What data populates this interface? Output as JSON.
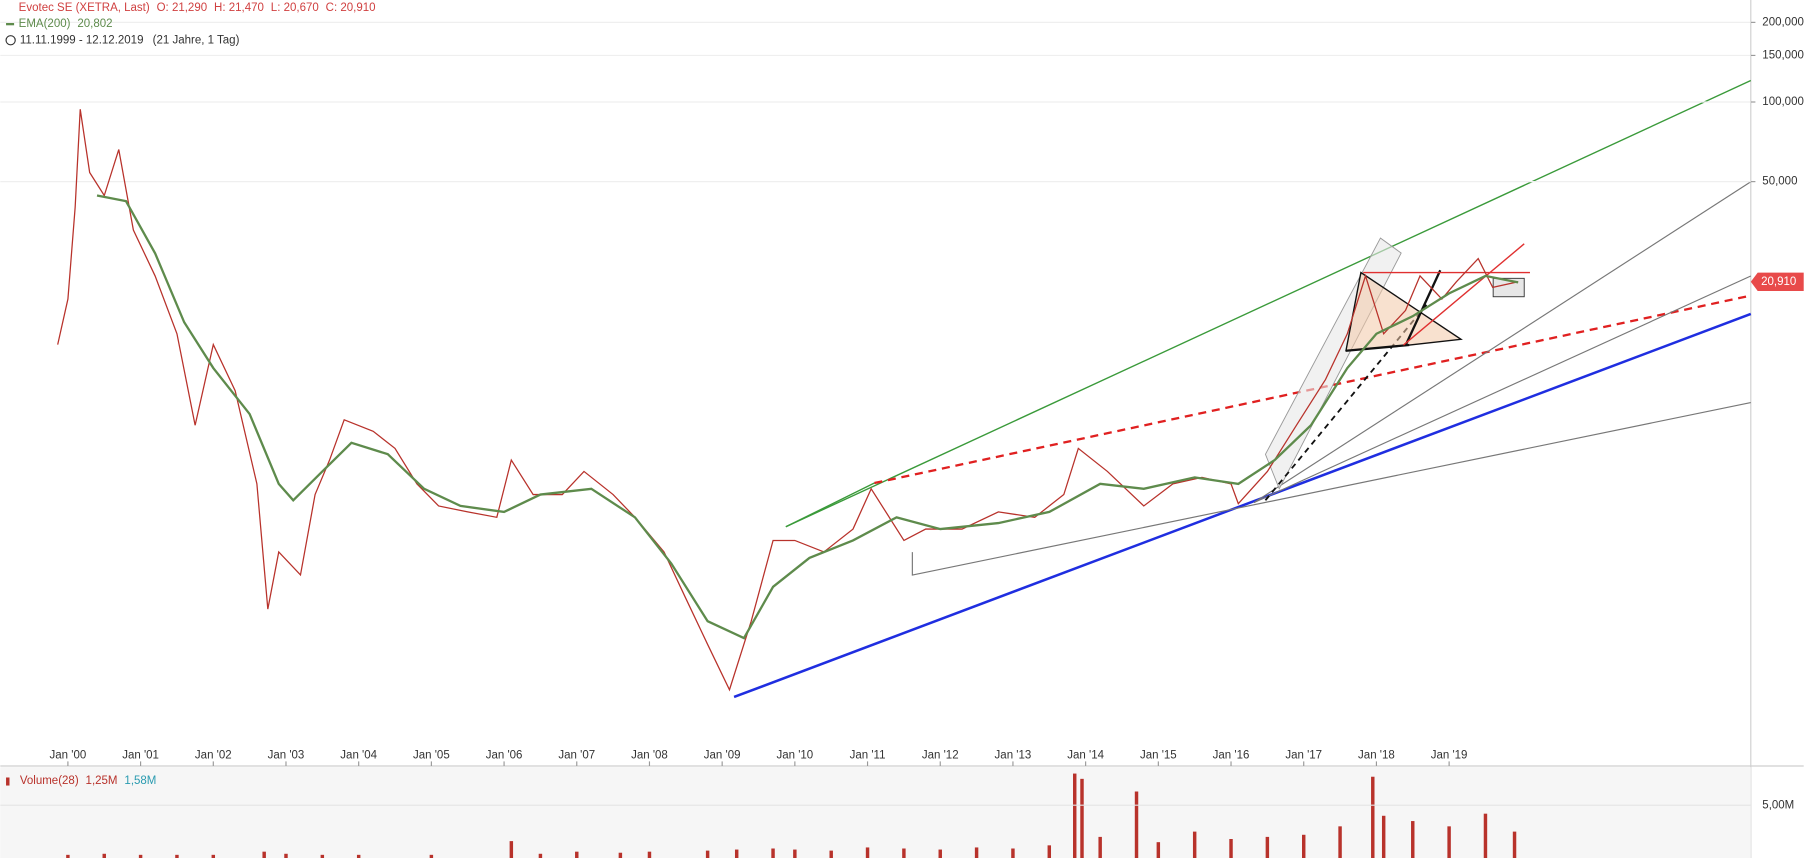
{
  "chart_data": [
    {
      "type": "line",
      "ohlc": [
        "O: 21,290",
        "H: 21,470",
        "L: 20,670",
        "C: 20,910"
      ],
      "period": "11.11.1999 - 12.12.2019",
      "period_note": "(21 Jahre, 1 Tag)",
      "last_label": "20,910",
      "log_scale": true,
      "grid": true,
      "xlim": [
        1999.07,
        2023.15
      ],
      "ylim": [
        0.312,
        243
      ],
      "xticks": [
        {
          "value": 2000,
          "label": "Jan '00"
        },
        {
          "value": 2001,
          "label": "Jan '01"
        },
        {
          "value": 2002,
          "label": "Jan '02"
        },
        {
          "value": 2003,
          "label": "Jan '03"
        },
        {
          "value": 2004,
          "label": "Jan '04"
        },
        {
          "value": 2005,
          "label": "Jan '05"
        },
        {
          "value": 2006,
          "label": "Jan '06"
        },
        {
          "value": 2007,
          "label": "Jan '07"
        },
        {
          "value": 2008,
          "label": "Jan '08"
        },
        {
          "value": 2009,
          "label": "Jan '09"
        },
        {
          "value": 2010,
          "label": "Jan '10"
        },
        {
          "value": 2011,
          "label": "Jan '11"
        },
        {
          "value": 2012,
          "label": "Jan '12"
        },
        {
          "value": 2013,
          "label": "Jan '13"
        },
        {
          "value": 2014,
          "label": "Jan '14"
        },
        {
          "value": 2015,
          "label": "Jan '15"
        },
        {
          "value": 2016,
          "label": "Jan '16"
        },
        {
          "value": 2017,
          "label": "Jan '17"
        },
        {
          "value": 2018,
          "label": "Jan '18"
        },
        {
          "value": 2019,
          "label": "Jan '19"
        }
      ],
      "yticks": [
        {
          "value": 50,
          "label": "50,000"
        },
        {
          "value": 100,
          "label": "100,000"
        },
        {
          "value": 150,
          "label": "150,000"
        },
        {
          "value": 200,
          "label": "200,000"
        }
      ],
      "series": [
        {
          "name": "Evotec SE (XETRA, Last)",
          "color": "#b8322b",
          "x": [
            1999.86,
            2000.0,
            2000.1,
            2000.17,
            2000.3,
            2000.5,
            2000.7,
            2000.9,
            2001.2,
            2001.5,
            2001.75,
            2002.0,
            2002.3,
            2002.6,
            2002.75,
            2002.9,
            2003.2,
            2003.4,
            2003.6,
            2003.8,
            2004.2,
            2004.5,
            2004.8,
            2005.1,
            2005.5,
            2005.9,
            2006.1,
            2006.4,
            2006.8,
            2007.1,
            2007.5,
            2007.8,
            2008.2,
            2008.5,
            2008.8,
            2009.1,
            2009.4,
            2009.7,
            2010.0,
            2010.4,
            2010.8,
            2011.05,
            2011.5,
            2011.8,
            2012.3,
            2012.8,
            2013.3,
            2013.7,
            2013.9,
            2014.3,
            2014.8,
            2015.2,
            2015.6,
            2016.0,
            2016.1,
            2016.5,
            2016.9,
            2017.3,
            2017.6,
            2017.85,
            2018.1,
            2018.4,
            2018.6,
            2018.9,
            2019.1,
            2019.4,
            2019.6,
            2019.95
          ],
          "values": [
            12.1,
            18.0,
            40.1,
            93.9,
            54.1,
            44.3,
            66.1,
            32.8,
            22.0,
            13.3,
            6.0,
            12.1,
            8.1,
            3.6,
            1.21,
            1.99,
            1.63,
            3.28,
            4.43,
            6.29,
            5.69,
            4.9,
            3.6,
            2.97,
            2.82,
            2.69,
            4.43,
            3.28,
            3.28,
            4.01,
            3.28,
            2.69,
            1.99,
            1.33,
            0.89,
            0.6,
            1.09,
            2.2,
            2.2,
            1.99,
            2.43,
            3.45,
            2.2,
            2.43,
            2.43,
            2.82,
            2.69,
            3.28,
            4.9,
            4.01,
            2.97,
            3.6,
            3.81,
            3.6,
            3.03,
            4.01,
            6.0,
            8.93,
            13.3,
            22.0,
            13.3,
            16.3,
            22.0,
            18.0,
            20.9,
            25.6,
            19.9,
            20.91
          ]
        },
        {
          "name": "EMA(200)",
          "color": "#5e8b4c",
          "last_label": "20,802",
          "x": [
            2000.4,
            2000.8,
            2001.2,
            2001.6,
            2002.0,
            2002.5,
            2002.9,
            2003.1,
            2003.5,
            2003.9,
            2004.4,
            2004.9,
            2005.4,
            2006.0,
            2006.5,
            2007.2,
            2007.8,
            2008.3,
            2008.8,
            2009.3,
            2009.7,
            2010.2,
            2010.8,
            2011.4,
            2012.0,
            2012.8,
            2013.5,
            2014.2,
            2014.8,
            2015.5,
            2016.1,
            2016.6,
            2017.1,
            2017.6,
            2018.0,
            2018.5,
            2019.0,
            2019.5,
            2019.95
          ],
          "values": [
            44.3,
            42.2,
            26.8,
            14.7,
            9.87,
            6.61,
            3.6,
            3.12,
            4.01,
            5.15,
            4.66,
            3.45,
            2.97,
            2.82,
            3.28,
            3.45,
            2.69,
            1.8,
            1.09,
            0.94,
            1.47,
            1.89,
            2.2,
            2.69,
            2.43,
            2.56,
            2.82,
            3.6,
            3.45,
            3.81,
            3.6,
            4.43,
            6.0,
            9.87,
            13.3,
            15.5,
            18.9,
            22.0,
            20.802
          ]
        }
      ]
    },
    {
      "type": "bar",
      "legend_values": [
        "1,25M",
        "1,58M"
      ],
      "xlim": [
        1999.07,
        2023.15
      ],
      "ylim": [
        0,
        8500000
      ],
      "yticks": [
        {
          "value": 5000000,
          "label": "5,00M"
        }
      ],
      "series": [
        {
          "name": "Volume(28)",
          "color": "#b8322b",
          "x": [
            2000.0,
            2000.5,
            2001.0,
            2001.5,
            2002.0,
            2002.7,
            2003.0,
            2003.5,
            2004.0,
            2005.0,
            2006.1,
            2006.5,
            2007.0,
            2007.6,
            2008.0,
            2008.8,
            2009.2,
            2009.7,
            2010.0,
            2010.5,
            2011.0,
            2011.5,
            2012.0,
            2012.5,
            2013.0,
            2013.5,
            2013.85,
            2013.95,
            2014.2,
            2014.7,
            2015.0,
            2015.5,
            2016.0,
            2016.5,
            2017.0,
            2017.5,
            2017.95,
            2018.1,
            2018.5,
            2019.0,
            2019.5,
            2019.9
          ],
          "values": [
            300000,
            400000,
            300000,
            300000,
            300000,
            600000,
            400000,
            300000,
            300000,
            300000,
            1600000,
            400000,
            600000,
            500000,
            600000,
            700000,
            800000,
            900000,
            800000,
            700000,
            1000000,
            900000,
            800000,
            1000000,
            900000,
            1200000,
            8000000,
            7500000,
            2000000,
            6300000,
            1500000,
            2500000,
            1800000,
            2000000,
            2200000,
            3000000,
            7700000,
            4000000,
            3500000,
            3000000,
            4200000,
            2500000
          ]
        }
      ]
    }
  ]
}
